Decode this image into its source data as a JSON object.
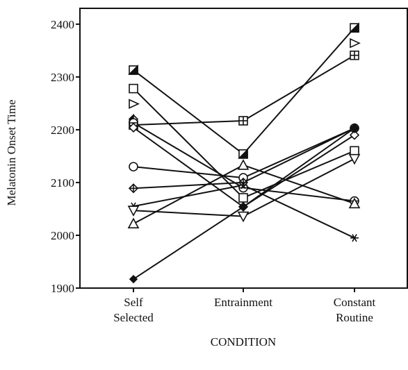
{
  "chart_data": {
    "type": "line",
    "y_label": "Melatonin Onset Time",
    "x_label": "CONDITION",
    "categories": [
      "Self\nSelected",
      "Entrainment",
      "Constant\nRoutine"
    ],
    "ylim": [
      1900,
      2430
    ],
    "yticks": [
      1900,
      2000,
      2100,
      2200,
      2300,
      2400
    ],
    "grid": false,
    "series": [
      {
        "marker": "half-square",
        "color": "#111",
        "values": [
          2313,
          2154,
          2393
        ]
      },
      {
        "marker": "square",
        "color": "#111",
        "values": [
          2278,
          2071,
          2160
        ]
      },
      {
        "marker": "triangle-right",
        "color": "#111",
        "values": [
          2249,
          null,
          2364
        ]
      },
      {
        "marker": "half-diamond",
        "color": "#111",
        "values": [
          2220,
          null,
          null
        ]
      },
      {
        "marker": "square-plus",
        "color": "#111",
        "values": [
          2209,
          2217,
          2341
        ]
      },
      {
        "marker": "circle-line",
        "color": "#111",
        "values": [
          2213,
          2090,
          2065
        ]
      },
      {
        "marker": "diamond",
        "color": "#111",
        "values": [
          2204,
          2054,
          2190
        ]
      },
      {
        "marker": "circle",
        "color": "#111",
        "values": [
          2130,
          2109,
          2203
        ]
      },
      {
        "marker": "diamond-plus",
        "color": "#111",
        "values": [
          2089,
          2100,
          2203
        ]
      },
      {
        "marker": "asterisk",
        "color": "#111",
        "values": [
          2055,
          2095,
          1995
        ]
      },
      {
        "marker": "triangle-down",
        "color": "#111",
        "values": [
          2047,
          2036,
          2145
        ]
      },
      {
        "marker": "triangle",
        "color": "#111",
        "values": [
          2022,
          2133,
          2060
        ]
      },
      {
        "marker": "diamond-filled",
        "color": "#111",
        "values": [
          1917,
          2054,
          2203
        ]
      }
    ]
  }
}
